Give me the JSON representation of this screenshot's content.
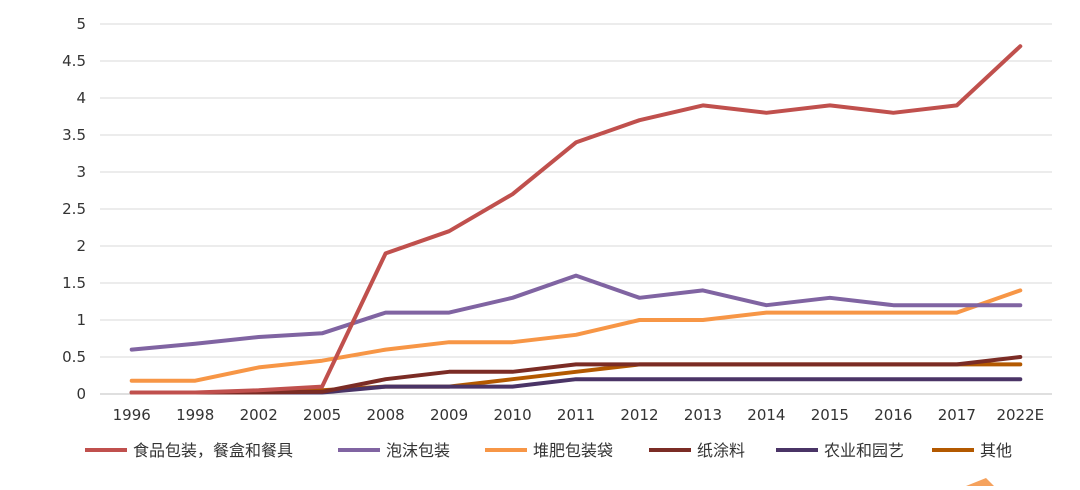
{
  "chart_data": {
    "type": "line",
    "categories": [
      "1996",
      "1998",
      "2002",
      "2005",
      "2008",
      "2009",
      "2010",
      "2011",
      "2012",
      "2013",
      "2014",
      "2015",
      "2016",
      "2017",
      "2022E"
    ],
    "yticks": [
      "0",
      "0.5",
      "1",
      "1.5",
      "2",
      "2.5",
      "3",
      "3.5",
      "4",
      "4.5",
      "5"
    ],
    "ylim": [
      0,
      5
    ],
    "grid": true,
    "legend_position": "bottom",
    "series": [
      {
        "name": "食品包装，餐盒和餐具",
        "color": "#c0504d",
        "values": [
          0.02,
          0.02,
          0.05,
          0.1,
          1.9,
          2.2,
          2.7,
          3.4,
          3.7,
          3.9,
          3.8,
          3.9,
          3.8,
          3.9,
          4.7
        ]
      },
      {
        "name": "泡沫包装",
        "color": "#8064a2",
        "values": [
          0.6,
          0.68,
          0.77,
          0.82,
          1.1,
          1.1,
          1.3,
          1.6,
          1.3,
          1.4,
          1.2,
          1.3,
          1.2,
          1.2,
          1.2
        ]
      },
      {
        "name": "堆肥包装袋",
        "color": "#f79646",
        "values": [
          0.18,
          0.18,
          0.36,
          0.45,
          0.6,
          0.7,
          0.7,
          0.8,
          1.0,
          1.0,
          1.1,
          1.1,
          1.1,
          1.1,
          1.4
        ]
      },
      {
        "name": "纸涂料",
        "color": "#7b2c25",
        "values": [
          0.02,
          0.02,
          0.02,
          0.03,
          0.2,
          0.3,
          0.3,
          0.4,
          0.4,
          0.4,
          0.4,
          0.4,
          0.4,
          0.4,
          0.5
        ]
      },
      {
        "name": "农业和园艺",
        "color": "#4a3466",
        "values": [
          0.02,
          0.02,
          0.02,
          0.02,
          0.1,
          0.1,
          0.1,
          0.2,
          0.2,
          0.2,
          0.2,
          0.2,
          0.2,
          0.2,
          0.2
        ]
      },
      {
        "name": "其他",
        "color": "#b35900",
        "values": [
          0.02,
          0.02,
          0.02,
          0.05,
          0.1,
          0.1,
          0.2,
          0.3,
          0.4,
          0.4,
          0.4,
          0.4,
          0.4,
          0.4,
          0.4
        ]
      }
    ]
  }
}
